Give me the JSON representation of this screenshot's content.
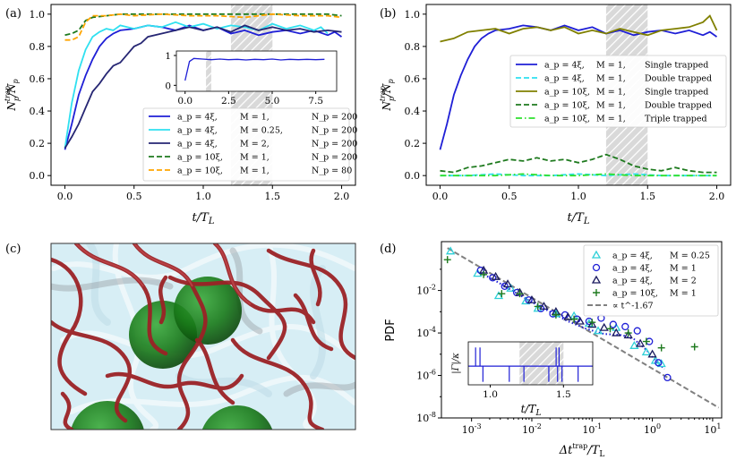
{
  "figure": {
    "panel_labels": [
      "(a)",
      "(b)",
      "(c)",
      "(d)"
    ],
    "panel_c_description": "3D render of vortex tubes with trapped particles"
  },
  "chart_data": [
    {
      "id": "a",
      "type": "line",
      "panel_label": "(a)",
      "xlabel": "t/T_L",
      "ylabel": "N_p^trap/N_p",
      "xlim": [
        -0.1,
        2.1
      ],
      "ylim": [
        -0.06,
        1.06
      ],
      "xticks": [
        0.0,
        0.5,
        1.0,
        1.5,
        2.0
      ],
      "xtick_labels": [
        "0.0",
        "0.5",
        "1.0",
        "1.5",
        "2.0"
      ],
      "yticks": [
        0.0,
        0.2,
        0.4,
        0.6,
        0.8,
        1.0
      ],
      "ytick_labels": [
        "0.0",
        "0.2",
        "0.4",
        "0.6",
        "0.8",
        "1.0"
      ],
      "shaded_region": [
        1.2,
        1.5
      ],
      "legend_position": "lower-right",
      "series": [
        {
          "name": "a_p = 4ξ,  M = 1,  N_p = 200",
          "color": "#1f1fd6",
          "dash": "solid",
          "x": [
            0,
            0.05,
            0.1,
            0.15,
            0.2,
            0.25,
            0.3,
            0.35,
            0.4,
            0.5,
            0.6,
            0.7,
            0.8,
            0.9,
            1.0,
            1.1,
            1.2,
            1.3,
            1.4,
            1.5,
            1.6,
            1.7,
            1.8,
            1.9,
            1.95,
            2.0
          ],
          "y": [
            0.16,
            0.32,
            0.5,
            0.62,
            0.72,
            0.8,
            0.85,
            0.88,
            0.9,
            0.91,
            0.93,
            0.92,
            0.9,
            0.93,
            0.9,
            0.92,
            0.88,
            0.9,
            0.87,
            0.89,
            0.9,
            0.88,
            0.9,
            0.87,
            0.89,
            0.86
          ]
        },
        {
          "name": "a_p = 4ξ,  M = 0.25,  N_p = 200",
          "color": "#2fe0f0",
          "dash": "solid",
          "x": [
            0,
            0.05,
            0.1,
            0.15,
            0.2,
            0.25,
            0.3,
            0.35,
            0.4,
            0.5,
            0.6,
            0.7,
            0.8,
            0.9,
            1.0,
            1.1,
            1.2,
            1.3,
            1.4,
            1.5,
            1.6,
            1.7,
            1.8,
            1.85,
            1.9
          ],
          "y": [
            0.17,
            0.45,
            0.65,
            0.78,
            0.86,
            0.89,
            0.91,
            0.9,
            0.93,
            0.91,
            0.93,
            0.92,
            0.95,
            0.92,
            0.94,
            0.91,
            0.93,
            0.92,
            0.9,
            0.94,
            0.91,
            0.93,
            0.9,
            0.92,
            0.88
          ]
        },
        {
          "name": "a_p = 4ξ,  M = 2,  N_p = 200",
          "color": "#262673",
          "dash": "solid",
          "x": [
            0,
            0.05,
            0.1,
            0.15,
            0.2,
            0.25,
            0.3,
            0.35,
            0.4,
            0.45,
            0.5,
            0.55,
            0.6,
            0.7,
            0.8,
            0.9,
            1.0,
            1.1,
            1.2,
            1.3,
            1.4,
            1.5,
            1.6,
            1.7,
            1.8,
            1.9,
            2.0
          ],
          "y": [
            0.17,
            0.24,
            0.32,
            0.42,
            0.52,
            0.57,
            0.63,
            0.68,
            0.7,
            0.75,
            0.8,
            0.82,
            0.86,
            0.88,
            0.9,
            0.92,
            0.9,
            0.92,
            0.89,
            0.93,
            0.9,
            0.92,
            0.9,
            0.91,
            0.89,
            0.9,
            0.89
          ]
        },
        {
          "name": "a_p = 10ξ,  M = 1,  N_p = 200",
          "color": "#1e7a1e",
          "dash": "dashed",
          "x": [
            0,
            0.05,
            0.1,
            0.15,
            0.2,
            0.3,
            0.4,
            0.5,
            0.7,
            0.9,
            1.1,
            1.3,
            1.5,
            1.7,
            1.9,
            2.0
          ],
          "y": [
            0.87,
            0.88,
            0.9,
            0.96,
            0.98,
            0.99,
            1.0,
            1.0,
            1.0,
            1.0,
            1.0,
            1.0,
            1.0,
            1.0,
            1.0,
            0.99
          ]
        },
        {
          "name": "a_p = 10ξ,  M = 1,  N_p = 80",
          "color": "#ffa500",
          "dash": "dashed",
          "x": [
            0,
            0.05,
            0.1,
            0.15,
            0.2,
            0.3,
            0.4,
            0.5,
            0.7,
            0.9,
            1.1,
            1.3,
            1.5,
            1.7,
            1.9,
            2.0
          ],
          "y": [
            0.84,
            0.84,
            0.86,
            0.95,
            0.99,
            0.99,
            1.0,
            0.99,
            1.0,
            0.99,
            0.99,
            0.98,
            1.0,
            0.99,
            0.99,
            0.98
          ]
        }
      ],
      "inset": {
        "xlim": [
          -0.5,
          8.7
        ],
        "ylim": [
          -0.2,
          1.15
        ],
        "xticks": [
          0.0,
          2.5,
          5.0,
          7.5
        ],
        "xtick_labels": [
          "0.0",
          "2.5",
          "5.0",
          "7.5"
        ],
        "yticks": [
          0,
          1
        ],
        "ytick_labels": [
          "0",
          "1"
        ],
        "shaded_region": [
          1.2,
          1.5
        ],
        "series": [
          {
            "color": "#1f1fd6",
            "x": [
              0,
              0.25,
              0.5,
              1.0,
              1.5,
              2.0,
              2.5,
              3.0,
              3.5,
              4.0,
              4.5,
              5.0,
              5.5,
              6.0,
              6.5,
              7.0,
              7.5,
              8.0
            ],
            "y": [
              0.16,
              0.8,
              0.9,
              0.88,
              0.86,
              0.88,
              0.86,
              0.87,
              0.85,
              0.87,
              0.86,
              0.88,
              0.85,
              0.87,
              0.86,
              0.87,
              0.86,
              0.87
            ]
          }
        ]
      }
    },
    {
      "id": "b",
      "type": "line",
      "panel_label": "(b)",
      "xlabel": "t/T_L",
      "ylabel": "N_p^trap/N_p",
      "xlim": [
        -0.1,
        2.1
      ],
      "ylim": [
        -0.06,
        1.06
      ],
      "xticks": [
        0.0,
        0.5,
        1.0,
        1.5,
        2.0
      ],
      "xtick_labels": [
        "0.0",
        "0.5",
        "1.0",
        "1.5",
        "2.0"
      ],
      "yticks": [
        0.0,
        0.2,
        0.4,
        0.6,
        0.8,
        1.0
      ],
      "ytick_labels": [
        "0.0",
        "0.2",
        "0.4",
        "0.6",
        "0.8",
        "1.0"
      ],
      "shaded_region": [
        1.2,
        1.5
      ],
      "legend_position": "center-right",
      "series": [
        {
          "name": "a_p = 4ξ,  M = 1,  Single trapped",
          "color": "#1f1fd6",
          "dash": "solid",
          "x": [
            0,
            0.05,
            0.1,
            0.15,
            0.2,
            0.25,
            0.3,
            0.35,
            0.4,
            0.5,
            0.6,
            0.7,
            0.8,
            0.9,
            1.0,
            1.1,
            1.2,
            1.3,
            1.4,
            1.5,
            1.6,
            1.7,
            1.8,
            1.9,
            1.95,
            2.0
          ],
          "y": [
            0.16,
            0.32,
            0.5,
            0.62,
            0.72,
            0.8,
            0.85,
            0.88,
            0.9,
            0.91,
            0.93,
            0.92,
            0.9,
            0.93,
            0.9,
            0.92,
            0.88,
            0.9,
            0.87,
            0.89,
            0.9,
            0.88,
            0.9,
            0.87,
            0.89,
            0.86
          ]
        },
        {
          "name": "a_p = 4ξ,  M = 1,  Double trapped",
          "color": "#2fe0f0",
          "dash": "dashed",
          "x": [
            0,
            0.2,
            0.4,
            0.6,
            0.8,
            1.0,
            1.2,
            1.4,
            1.6,
            1.8,
            2.0
          ],
          "y": [
            0.0,
            0.0,
            0.01,
            0.0,
            0.0,
            0.01,
            0.0,
            0.01,
            0.0,
            0.0,
            0.0
          ]
        },
        {
          "name": "a_p = 10ξ,  M = 1,  Single trapped",
          "color": "#808000",
          "dash": "solid",
          "x": [
            0,
            0.1,
            0.2,
            0.3,
            0.4,
            0.5,
            0.6,
            0.7,
            0.8,
            0.9,
            1.0,
            1.1,
            1.2,
            1.3,
            1.4,
            1.5,
            1.6,
            1.7,
            1.8,
            1.9,
            1.95,
            2.0
          ],
          "y": [
            0.83,
            0.85,
            0.89,
            0.9,
            0.91,
            0.88,
            0.91,
            0.92,
            0.9,
            0.92,
            0.88,
            0.9,
            0.88,
            0.91,
            0.89,
            0.87,
            0.9,
            0.91,
            0.92,
            0.95,
            0.99,
            0.9
          ]
        },
        {
          "name": "a_p = 10ξ,  M = 1,  Double trapped",
          "color": "#1e7a1e",
          "dash": "dashed",
          "x": [
            0,
            0.1,
            0.2,
            0.3,
            0.4,
            0.5,
            0.6,
            0.7,
            0.8,
            0.9,
            1.0,
            1.1,
            1.2,
            1.3,
            1.4,
            1.5,
            1.6,
            1.7,
            1.8,
            1.9,
            2.0
          ],
          "y": [
            0.03,
            0.02,
            0.05,
            0.06,
            0.08,
            0.1,
            0.09,
            0.11,
            0.09,
            0.1,
            0.08,
            0.1,
            0.13,
            0.1,
            0.06,
            0.04,
            0.03,
            0.05,
            0.03,
            0.02,
            0.02
          ]
        },
        {
          "name": "a_p = 10ξ,  M = 1,  Triple trapped",
          "color": "#2ee02e",
          "dash": "dashdot",
          "x": [
            0,
            0.2,
            0.4,
            0.6,
            0.8,
            1.0,
            1.2,
            1.4,
            1.6,
            1.8,
            2.0
          ],
          "y": [
            0.0,
            0.0,
            0.0,
            0.01,
            0.0,
            0.0,
            0.01,
            0.0,
            0.0,
            0.0,
            0.0
          ]
        }
      ]
    },
    {
      "id": "d",
      "type": "scatter",
      "panel_label": "(d)",
      "xlabel": "Δt^trap/T_L",
      "ylabel": "PDF",
      "xscale": "log",
      "yscale": "log",
      "xlim_log10": [
        -3.5,
        1.15
      ],
      "ylim_log10": [
        -8,
        0.3
      ],
      "xticks_log10": [
        -3,
        -2,
        -1,
        0,
        1
      ],
      "xtick_labels": [
        "10^-3",
        "10^-2",
        "10^-1",
        "10^0",
        "10^1"
      ],
      "yticks_log10": [
        -8,
        -6,
        -4,
        -2
      ],
      "ytick_labels": [
        "10^-8",
        "10^-6",
        "10^-4",
        "10^-2"
      ],
      "legend_position": "upper-right",
      "power_law": {
        "name": "∝ t^-1.67",
        "color": "#808080",
        "exponent": -1.67,
        "x_log10": [
          -3.4,
          1.1
        ],
        "y_log10_at_xmin": 0.0
      },
      "fit_line": {
        "color": "#1f1fd6",
        "dash": "dotted",
        "x_log10": [
          -2.9,
          -2.6,
          -2.3,
          -2.0,
          -1.7,
          -1.4,
          -1.1,
          -0.8,
          -0.5,
          -0.3,
          -0.1,
          0.05,
          0.2
        ],
        "y_log10": [
          -1.1,
          -1.55,
          -2.05,
          -2.55,
          -3.0,
          -3.45,
          -3.8,
          -4.05,
          -4.1,
          -4.3,
          -4.8,
          -5.3,
          -5.7
        ]
      },
      "series": [
        {
          "name": "a_p = 4ξ,  M = 0.25",
          "marker": "triangle-open",
          "color": "#2fd0d8",
          "x_log10": [
            -3.35,
            -2.9,
            -2.55,
            -2.35,
            -2.1,
            -1.9,
            -1.6,
            -1.3,
            -1.05,
            -0.9,
            -0.6,
            -0.3,
            -0.1,
            0.05,
            0.15
          ],
          "y_log10": [
            -0.15,
            -1.2,
            -2.25,
            -1.9,
            -2.5,
            -2.85,
            -3.1,
            -3.2,
            -3.55,
            -3.9,
            -3.75,
            -4.6,
            -4.9,
            -5.3,
            -5.45
          ]
        },
        {
          "name": "a_p = 4ξ,  M = 1",
          "marker": "circle-open",
          "color": "#1f1fd6",
          "x_log10": [
            -2.85,
            -2.65,
            -2.45,
            -2.25,
            -2.05,
            -1.85,
            -1.65,
            -1.45,
            -1.25,
            -1.05,
            -0.85,
            -0.65,
            -0.45,
            -0.25,
            -0.05,
            0.1,
            0.25
          ],
          "y_log10": [
            -1.05,
            -1.4,
            -1.8,
            -2.1,
            -2.45,
            -2.85,
            -3.1,
            -3.15,
            -3.35,
            -3.45,
            -3.3,
            -3.6,
            -3.7,
            -3.9,
            -4.4,
            -5.4,
            -6.1
          ]
        },
        {
          "name": "a_p = 4ξ,  M = 2",
          "marker": "triangle-open",
          "color": "#1a1a5e",
          "x_log10": [
            -2.8,
            -2.6,
            -2.4,
            -2.2,
            -2.0,
            -1.8,
            -1.6,
            -1.4,
            -1.2,
            -1.0,
            -0.8,
            -0.6,
            -0.4,
            -0.2,
            0.0
          ],
          "y_log10": [
            -1.05,
            -1.35,
            -1.7,
            -2.1,
            -2.45,
            -2.75,
            -3.0,
            -3.25,
            -3.45,
            -3.6,
            -3.75,
            -4.0,
            -4.1,
            -4.5,
            -5.0
          ]
        },
        {
          "name": "a_p = 10ξ,  M = 1",
          "marker": "plus",
          "color": "#1e7a1e",
          "x_log10": [
            -3.4,
            -2.8,
            -2.5,
            -2.2,
            -1.9,
            -1.6,
            -1.3,
            -1.0,
            -0.7,
            -0.4,
            -0.1,
            0.15,
            0.7
          ],
          "y_log10": [
            -0.55,
            -1.25,
            -2.15,
            -2.15,
            -2.75,
            -3.15,
            -3.35,
            -3.5,
            -3.8,
            -4.0,
            -4.4,
            -4.7,
            -4.65
          ]
        }
      ],
      "inset": {
        "xlabel": "t/T_L",
        "ylabel": "|Γ|/κ",
        "xlim": [
          0.85,
          1.7
        ],
        "ylim": [
          0,
          1.15
        ],
        "xticks": [
          1.0,
          1.5
        ],
        "xtick_labels": [
          "1.0",
          "1.5"
        ],
        "shaded_region": [
          1.2,
          1.5
        ],
        "color": "#1f1fd6",
        "baseline": 0.5,
        "spikes_up": [
          0.9,
          0.93,
          1.45,
          1.47
        ],
        "spikes_down": [
          0.95,
          1.13,
          1.23,
          1.4,
          1.46,
          1.49,
          1.6
        ]
      }
    }
  ]
}
